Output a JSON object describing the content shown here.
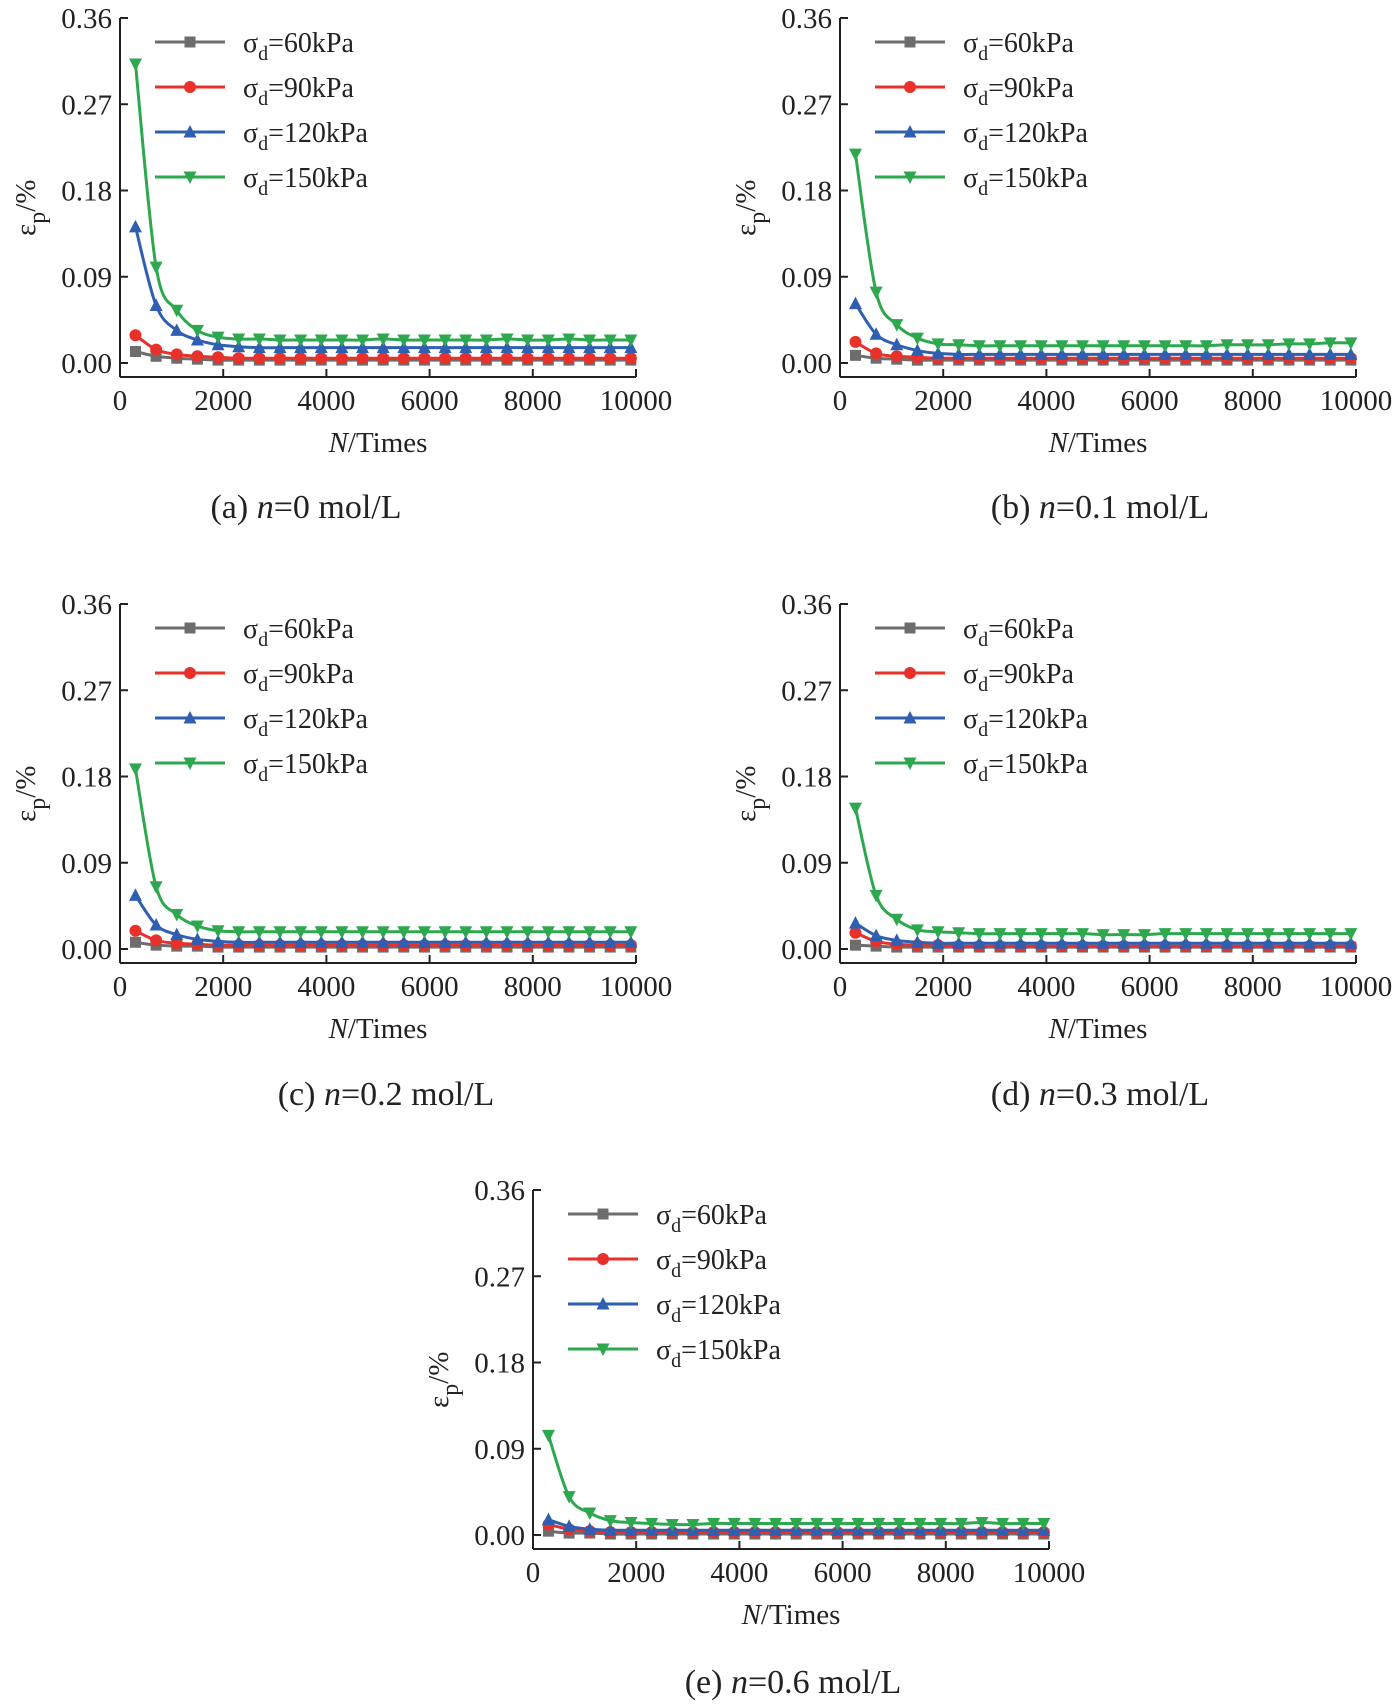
{
  "chart_data": [
    {
      "type": "line",
      "caption": {
        "prefix": "(a) ",
        "var": "n",
        "value": "=0 mol/L"
      },
      "xlabel": {
        "var": "N",
        "unit": "/Times"
      },
      "ylabel": {
        "sym": "ε",
        "sub": "p",
        "unit": "/%"
      },
      "xlim": [
        0,
        10000
      ],
      "ylim": [
        0,
        0.36
      ],
      "xticks": [
        "0",
        "2000",
        "4000",
        "6000",
        "8000",
        "10000"
      ],
      "yticks": [
        "0.00",
        "0.09",
        "0.18",
        "0.27",
        "0.36"
      ],
      "legend_placement": "top-left",
      "x": [
        300,
        700,
        1100,
        1500,
        1900,
        2300,
        2700,
        3100,
        3500,
        3900,
        4300,
        4700,
        5100,
        5500,
        5900,
        6300,
        6700,
        7100,
        7500,
        7900,
        8300,
        8700,
        9100,
        9500,
        9900
      ],
      "series": [
        {
          "name": {
            "sym": "σ",
            "sub": "d",
            "rest": "=60kPa"
          },
          "color": "#6d6d6d",
          "marker": "square",
          "values": [
            0.012,
            0.007,
            0.005,
            0.004,
            0.003,
            0.003,
            0.003,
            0.003,
            0.003,
            0.003,
            0.003,
            0.003,
            0.003,
            0.003,
            0.003,
            0.003,
            0.003,
            0.003,
            0.003,
            0.003,
            0.003,
            0.003,
            0.003,
            0.003,
            0.003
          ]
        },
        {
          "name": {
            "sym": "σ",
            "sub": "d",
            "rest": "=90kPa"
          },
          "color": "#e8312a",
          "marker": "circle",
          "values": [
            0.029,
            0.014,
            0.009,
            0.007,
            0.006,
            0.005,
            0.005,
            0.005,
            0.005,
            0.005,
            0.005,
            0.005,
            0.005,
            0.005,
            0.005,
            0.005,
            0.005,
            0.005,
            0.005,
            0.005,
            0.005,
            0.005,
            0.005,
            0.005,
            0.005
          ]
        },
        {
          "name": {
            "sym": "σ",
            "sub": "d",
            "rest": "=120kPa"
          },
          "color": "#2e5fb0",
          "marker": "triangle-up",
          "values": [
            0.142,
            0.06,
            0.034,
            0.024,
            0.019,
            0.017,
            0.016,
            0.016,
            0.016,
            0.016,
            0.016,
            0.016,
            0.016,
            0.016,
            0.016,
            0.016,
            0.016,
            0.016,
            0.016,
            0.016,
            0.016,
            0.016,
            0.016,
            0.016,
            0.016
          ]
        },
        {
          "name": {
            "sym": "σ",
            "sub": "d",
            "rest": "=150kPa"
          },
          "color": "#2ea84f",
          "marker": "triangle-down",
          "values": [
            0.312,
            0.1,
            0.055,
            0.034,
            0.027,
            0.025,
            0.025,
            0.024,
            0.024,
            0.024,
            0.024,
            0.024,
            0.025,
            0.024,
            0.024,
            0.024,
            0.024,
            0.024,
            0.025,
            0.024,
            0.024,
            0.025,
            0.024,
            0.024,
            0.024
          ]
        }
      ]
    },
    {
      "type": "line",
      "caption": {
        "prefix": "(b) ",
        "var": "n",
        "value": "=0.1 mol/L"
      },
      "xlabel": {
        "var": "N",
        "unit": "/Times"
      },
      "ylabel": {
        "sym": "ε",
        "sub": "p",
        "unit": "/%"
      },
      "xlim": [
        0,
        10000
      ],
      "ylim": [
        0,
        0.36
      ],
      "xticks": [
        "0",
        "2000",
        "4000",
        "6000",
        "8000",
        "10000"
      ],
      "yticks": [
        "0.00",
        "0.09",
        "0.18",
        "0.27",
        "0.36"
      ],
      "legend_placement": "top-left",
      "x": [
        300,
        700,
        1100,
        1500,
        1900,
        2300,
        2700,
        3100,
        3500,
        3900,
        4300,
        4700,
        5100,
        5500,
        5900,
        6300,
        6700,
        7100,
        7500,
        7900,
        8300,
        8700,
        9100,
        9500,
        9900
      ],
      "series": [
        {
          "name": {
            "sym": "σ",
            "sub": "d",
            "rest": "=60kPa"
          },
          "color": "#6d6d6d",
          "marker": "square",
          "values": [
            0.008,
            0.005,
            0.004,
            0.003,
            0.003,
            0.003,
            0.003,
            0.003,
            0.003,
            0.003,
            0.003,
            0.003,
            0.003,
            0.003,
            0.003,
            0.003,
            0.003,
            0.003,
            0.003,
            0.003,
            0.003,
            0.003,
            0.003,
            0.003,
            0.003
          ]
        },
        {
          "name": {
            "sym": "σ",
            "sub": "d",
            "rest": "=90kPa"
          },
          "color": "#e8312a",
          "marker": "circle",
          "values": [
            0.022,
            0.01,
            0.007,
            0.006,
            0.005,
            0.005,
            0.005,
            0.005,
            0.005,
            0.005,
            0.005,
            0.005,
            0.005,
            0.005,
            0.005,
            0.005,
            0.005,
            0.005,
            0.005,
            0.005,
            0.005,
            0.005,
            0.005,
            0.005,
            0.005
          ]
        },
        {
          "name": {
            "sym": "σ",
            "sub": "d",
            "rest": "=120kPa"
          },
          "color": "#2e5fb0",
          "marker": "triangle-up",
          "values": [
            0.062,
            0.03,
            0.019,
            0.013,
            0.01,
            0.009,
            0.009,
            0.009,
            0.009,
            0.009,
            0.009,
            0.009,
            0.009,
            0.009,
            0.009,
            0.009,
            0.009,
            0.009,
            0.009,
            0.009,
            0.009,
            0.009,
            0.009,
            0.009,
            0.009
          ]
        },
        {
          "name": {
            "sym": "σ",
            "sub": "d",
            "rest": "=150kPa"
          },
          "color": "#2ea84f",
          "marker": "triangle-down",
          "values": [
            0.218,
            0.074,
            0.04,
            0.026,
            0.02,
            0.019,
            0.018,
            0.018,
            0.018,
            0.018,
            0.018,
            0.018,
            0.018,
            0.018,
            0.018,
            0.018,
            0.018,
            0.018,
            0.019,
            0.019,
            0.019,
            0.02,
            0.02,
            0.021,
            0.021
          ]
        }
      ]
    },
    {
      "type": "line",
      "caption": {
        "prefix": "(c) ",
        "var": "n",
        "value": "=0.2 mol/L"
      },
      "xlabel": {
        "var": "N",
        "unit": "/Times"
      },
      "ylabel": {
        "sym": "ε",
        "sub": "p",
        "unit": "/%"
      },
      "xlim": [
        0,
        10000
      ],
      "ylim": [
        0,
        0.36
      ],
      "xticks": [
        "0",
        "2000",
        "4000",
        "6000",
        "8000",
        "10000"
      ],
      "yticks": [
        "0.00",
        "0.09",
        "0.18",
        "0.27",
        "0.36"
      ],
      "legend_placement": "top-left",
      "x": [
        300,
        700,
        1100,
        1500,
        1900,
        2300,
        2700,
        3100,
        3500,
        3900,
        4300,
        4700,
        5100,
        5500,
        5900,
        6300,
        6700,
        7100,
        7500,
        7900,
        8300,
        8700,
        9100,
        9500,
        9900
      ],
      "series": [
        {
          "name": {
            "sym": "σ",
            "sub": "d",
            "rest": "=60kPa"
          },
          "color": "#6d6d6d",
          "marker": "square",
          "values": [
            0.007,
            0.004,
            0.003,
            0.003,
            0.002,
            0.002,
            0.002,
            0.002,
            0.002,
            0.002,
            0.002,
            0.002,
            0.002,
            0.002,
            0.002,
            0.002,
            0.002,
            0.002,
            0.002,
            0.002,
            0.002,
            0.002,
            0.002,
            0.002,
            0.002
          ]
        },
        {
          "name": {
            "sym": "σ",
            "sub": "d",
            "rest": "=90kPa"
          },
          "color": "#e8312a",
          "marker": "circle",
          "values": [
            0.019,
            0.009,
            0.006,
            0.005,
            0.004,
            0.004,
            0.004,
            0.004,
            0.004,
            0.004,
            0.004,
            0.004,
            0.004,
            0.004,
            0.004,
            0.004,
            0.004,
            0.004,
            0.004,
            0.004,
            0.004,
            0.004,
            0.004,
            0.004,
            0.004
          ]
        },
        {
          "name": {
            "sym": "σ",
            "sub": "d",
            "rest": "=120kPa"
          },
          "color": "#2e5fb0",
          "marker": "triangle-up",
          "values": [
            0.056,
            0.025,
            0.015,
            0.01,
            0.008,
            0.007,
            0.007,
            0.007,
            0.007,
            0.007,
            0.007,
            0.007,
            0.007,
            0.007,
            0.007,
            0.007,
            0.007,
            0.007,
            0.007,
            0.007,
            0.007,
            0.007,
            0.007,
            0.007,
            0.007
          ]
        },
        {
          "name": {
            "sym": "σ",
            "sub": "d",
            "rest": "=150kPa"
          },
          "color": "#2ea84f",
          "marker": "triangle-down",
          "values": [
            0.188,
            0.065,
            0.036,
            0.024,
            0.019,
            0.018,
            0.018,
            0.018,
            0.018,
            0.018,
            0.018,
            0.018,
            0.018,
            0.018,
            0.018,
            0.018,
            0.018,
            0.018,
            0.018,
            0.018,
            0.018,
            0.018,
            0.018,
            0.018,
            0.018
          ]
        }
      ]
    },
    {
      "type": "line",
      "caption": {
        "prefix": "(d) ",
        "var": "n",
        "value": "=0.3 mol/L"
      },
      "xlabel": {
        "var": "N",
        "unit": "/Times"
      },
      "ylabel": {
        "sym": "ε",
        "sub": "p",
        "unit": "/%"
      },
      "xlim": [
        0,
        10000
      ],
      "ylim": [
        0,
        0.36
      ],
      "xticks": [
        "0",
        "2000",
        "4000",
        "6000",
        "8000",
        "10000"
      ],
      "yticks": [
        "0.00",
        "0.09",
        "0.18",
        "0.27",
        "0.36"
      ],
      "legend_placement": "top-left",
      "x": [
        300,
        700,
        1100,
        1500,
        1900,
        2300,
        2700,
        3100,
        3500,
        3900,
        4300,
        4700,
        5100,
        5500,
        5900,
        6300,
        6700,
        7100,
        7500,
        7900,
        8300,
        8700,
        9100,
        9500,
        9900
      ],
      "series": [
        {
          "name": {
            "sym": "σ",
            "sub": "d",
            "rest": "=60kPa"
          },
          "color": "#6d6d6d",
          "marker": "square",
          "values": [
            0.004,
            0.003,
            0.002,
            0.002,
            0.002,
            0.002,
            0.002,
            0.002,
            0.002,
            0.002,
            0.002,
            0.002,
            0.002,
            0.002,
            0.002,
            0.002,
            0.002,
            0.002,
            0.002,
            0.002,
            0.002,
            0.002,
            0.002,
            0.002,
            0.002
          ]
        },
        {
          "name": {
            "sym": "σ",
            "sub": "d",
            "rest": "=90kPa"
          },
          "color": "#e8312a",
          "marker": "circle",
          "values": [
            0.017,
            0.008,
            0.005,
            0.004,
            0.004,
            0.003,
            0.003,
            0.003,
            0.003,
            0.003,
            0.003,
            0.003,
            0.003,
            0.003,
            0.003,
            0.003,
            0.003,
            0.003,
            0.003,
            0.003,
            0.003,
            0.003,
            0.003,
            0.003,
            0.003
          ]
        },
        {
          "name": {
            "sym": "σ",
            "sub": "d",
            "rest": "=120kPa"
          },
          "color": "#2e5fb0",
          "marker": "triangle-up",
          "values": [
            0.027,
            0.014,
            0.009,
            0.007,
            0.006,
            0.006,
            0.006,
            0.006,
            0.006,
            0.006,
            0.006,
            0.006,
            0.006,
            0.006,
            0.006,
            0.006,
            0.006,
            0.006,
            0.006,
            0.006,
            0.006,
            0.006,
            0.006,
            0.006,
            0.006
          ]
        },
        {
          "name": {
            "sym": "σ",
            "sub": "d",
            "rest": "=150kPa"
          },
          "color": "#2ea84f",
          "marker": "triangle-down",
          "values": [
            0.147,
            0.056,
            0.031,
            0.02,
            0.018,
            0.017,
            0.016,
            0.016,
            0.016,
            0.016,
            0.016,
            0.016,
            0.015,
            0.015,
            0.015,
            0.016,
            0.016,
            0.016,
            0.016,
            0.016,
            0.016,
            0.016,
            0.016,
            0.016,
            0.016
          ]
        }
      ]
    },
    {
      "type": "line",
      "caption": {
        "prefix": "(e) ",
        "var": "n",
        "value": "=0.6 mol/L"
      },
      "xlabel": {
        "var": "N",
        "unit": "/Times"
      },
      "ylabel": {
        "sym": "ε",
        "sub": "p",
        "unit": "/%"
      },
      "xlim": [
        0,
        10000
      ],
      "ylim": [
        0,
        0.36
      ],
      "xticks": [
        "0",
        "2000",
        "4000",
        "6000",
        "8000",
        "10000"
      ],
      "yticks": [
        "0.00",
        "0.09",
        "0.18",
        "0.27",
        "0.36"
      ],
      "legend_placement": "top-left",
      "x": [
        300,
        700,
        1100,
        1500,
        1900,
        2300,
        2700,
        3100,
        3500,
        3900,
        4300,
        4700,
        5100,
        5500,
        5900,
        6300,
        6700,
        7100,
        7500,
        7900,
        8300,
        8700,
        9100,
        9500,
        9900
      ],
      "series": [
        {
          "name": {
            "sym": "σ",
            "sub": "d",
            "rest": "=60kPa"
          },
          "color": "#6d6d6d",
          "marker": "square",
          "values": [
            0.004,
            0.002,
            0.002,
            0.001,
            0.001,
            0.001,
            0.001,
            0.001,
            0.001,
            0.001,
            0.001,
            0.001,
            0.001,
            0.001,
            0.001,
            0.001,
            0.001,
            0.001,
            0.001,
            0.001,
            0.001,
            0.001,
            0.001,
            0.001,
            0.001
          ]
        },
        {
          "name": {
            "sym": "σ",
            "sub": "d",
            "rest": "=90kPa"
          },
          "color": "#e8312a",
          "marker": "circle",
          "values": [
            0.011,
            0.006,
            0.004,
            0.003,
            0.003,
            0.003,
            0.003,
            0.003,
            0.003,
            0.003,
            0.003,
            0.003,
            0.003,
            0.003,
            0.003,
            0.003,
            0.003,
            0.003,
            0.003,
            0.003,
            0.003,
            0.003,
            0.003,
            0.003,
            0.003
          ]
        },
        {
          "name": {
            "sym": "σ",
            "sub": "d",
            "rest": "=120kPa"
          },
          "color": "#2e5fb0",
          "marker": "triangle-up",
          "values": [
            0.016,
            0.009,
            0.006,
            0.005,
            0.005,
            0.005,
            0.005,
            0.005,
            0.005,
            0.005,
            0.005,
            0.005,
            0.005,
            0.005,
            0.005,
            0.005,
            0.005,
            0.005,
            0.005,
            0.005,
            0.005,
            0.005,
            0.005,
            0.005,
            0.005
          ]
        },
        {
          "name": {
            "sym": "σ",
            "sub": "d",
            "rest": "=150kPa"
          },
          "color": "#2ea84f",
          "marker": "triangle-down",
          "values": [
            0.104,
            0.04,
            0.023,
            0.015,
            0.013,
            0.012,
            0.011,
            0.011,
            0.012,
            0.012,
            0.012,
            0.012,
            0.012,
            0.012,
            0.012,
            0.012,
            0.012,
            0.012,
            0.012,
            0.012,
            0.012,
            0.013,
            0.012,
            0.012,
            0.012
          ]
        }
      ]
    }
  ]
}
